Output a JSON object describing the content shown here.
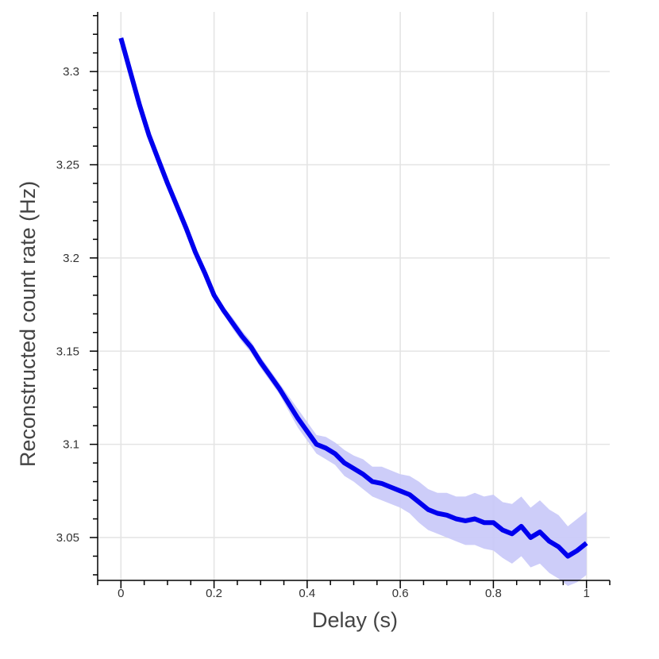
{
  "chart_data": {
    "type": "line",
    "xlabel": "Delay (s)",
    "ylabel": "Reconstructed count rate (Hz)",
    "xlim": [
      -0.05,
      1.05
    ],
    "ylim": [
      3.027,
      3.332
    ],
    "x_ticks": [
      0,
      0.2,
      0.4,
      0.6,
      0.8,
      1
    ],
    "x_tick_labels": [
      "0",
      "0.2",
      "0.4",
      "0.6",
      "0.8",
      "1"
    ],
    "y_ticks": [
      3.05,
      3.1,
      3.15,
      3.2,
      3.25,
      3.3
    ],
    "y_tick_labels": [
      "3.05",
      "3.1",
      "3.15",
      "3.2",
      "3.25",
      "3.3"
    ],
    "grid": true,
    "colors": {
      "line": "#0000ee",
      "band": "#c8c8f8"
    },
    "series": [
      {
        "x": [
          0,
          0.02,
          0.04,
          0.06,
          0.08,
          0.1,
          0.12,
          0.14,
          0.16,
          0.18,
          0.2,
          0.22,
          0.24,
          0.26,
          0.28,
          0.3,
          0.32,
          0.34,
          0.36,
          0.38,
          0.4,
          0.42,
          0.44,
          0.46,
          0.48,
          0.5,
          0.52,
          0.54,
          0.56,
          0.58,
          0.6,
          0.62,
          0.64,
          0.66,
          0.68,
          0.7,
          0.72,
          0.74,
          0.76,
          0.78,
          0.8,
          0.82,
          0.84,
          0.86,
          0.88,
          0.9,
          0.92,
          0.94,
          0.96,
          0.98,
          1.0
        ],
        "y": [
          3.318,
          3.3,
          3.282,
          3.266,
          3.253,
          3.24,
          3.228,
          3.216,
          3.203,
          3.192,
          3.18,
          3.172,
          3.165,
          3.158,
          3.152,
          3.144,
          3.137,
          3.13,
          3.122,
          3.114,
          3.107,
          3.1,
          3.098,
          3.095,
          3.09,
          3.087,
          3.084,
          3.08,
          3.079,
          3.077,
          3.075,
          3.073,
          3.069,
          3.065,
          3.063,
          3.062,
          3.06,
          3.059,
          3.06,
          3.058,
          3.058,
          3.054,
          3.052,
          3.056,
          3.05,
          3.053,
          3.048,
          3.045,
          3.04,
          3.043,
          3.047
        ],
        "lower": [
          3.316,
          3.298,
          3.28,
          3.264,
          3.251,
          3.238,
          3.226,
          3.214,
          3.201,
          3.19,
          3.178,
          3.17,
          3.162,
          3.155,
          3.149,
          3.141,
          3.134,
          3.127,
          3.118,
          3.109,
          3.102,
          3.095,
          3.092,
          3.089,
          3.083,
          3.08,
          3.076,
          3.072,
          3.07,
          3.068,
          3.066,
          3.063,
          3.058,
          3.054,
          3.052,
          3.05,
          3.048,
          3.046,
          3.046,
          3.044,
          3.043,
          3.039,
          3.036,
          3.04,
          3.034,
          3.036,
          3.031,
          3.028,
          3.024,
          3.026,
          3.03
        ],
        "upper": [
          3.32,
          3.302,
          3.284,
          3.268,
          3.255,
          3.242,
          3.23,
          3.218,
          3.205,
          3.194,
          3.182,
          3.174,
          3.168,
          3.161,
          3.155,
          3.147,
          3.14,
          3.133,
          3.126,
          3.119,
          3.112,
          3.105,
          3.104,
          3.101,
          3.097,
          3.094,
          3.092,
          3.088,
          3.088,
          3.086,
          3.084,
          3.083,
          3.08,
          3.076,
          3.074,
          3.074,
          3.072,
          3.072,
          3.074,
          3.072,
          3.073,
          3.069,
          3.068,
          3.072,
          3.066,
          3.07,
          3.065,
          3.062,
          3.056,
          3.06,
          3.064
        ]
      }
    ]
  }
}
